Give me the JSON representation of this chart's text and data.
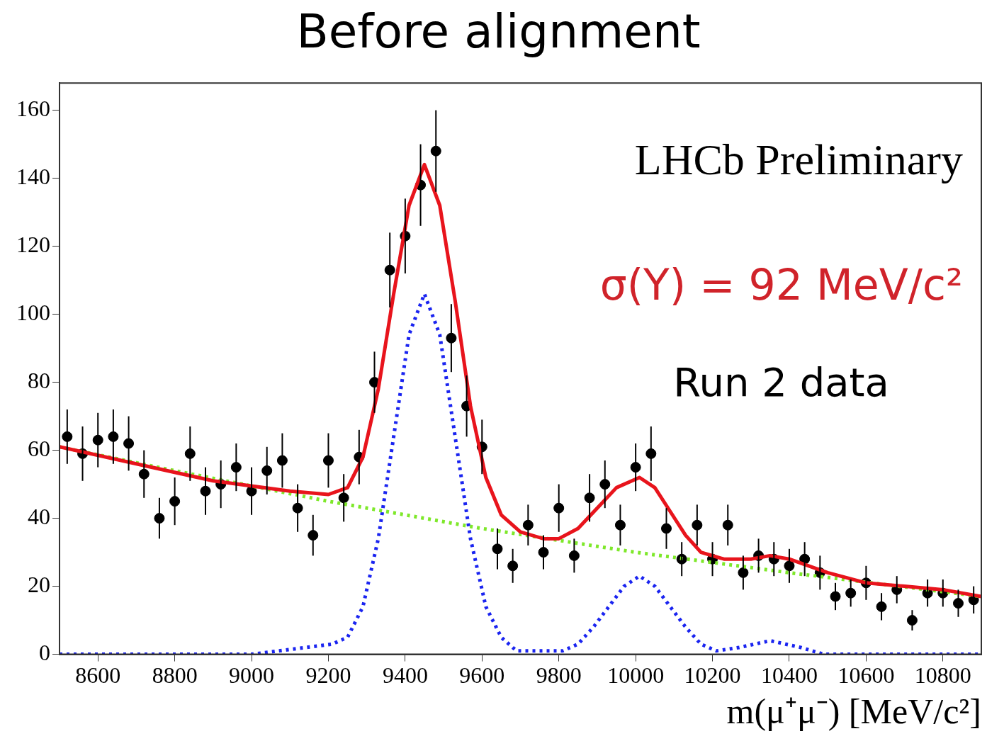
{
  "chart_data": {
    "type": "scatter",
    "title": "Before alignment",
    "xlabel": "m(μ⁺μ⁻) [MeV/c²]",
    "annotations": [
      "LHCb Preliminary",
      "σ(Y) = 92 MeV/c²",
      "Run 2 data"
    ],
    "xlim": [
      8500,
      10900
    ],
    "xticks": [
      8600,
      8800,
      9000,
      9200,
      9400,
      9600,
      9800,
      10000,
      10200,
      10400,
      10600,
      10800
    ],
    "ylim": [
      0,
      168
    ],
    "yticks": [
      0,
      20,
      40,
      60,
      80,
      100,
      120,
      140,
      160
    ],
    "grid": false,
    "legend": false,
    "series": [
      {
        "color": "#000000",
        "marker": "circle",
        "x": [
          8520,
          8560,
          8600,
          8640,
          8680,
          8720,
          8760,
          8800,
          8840,
          8880,
          8920,
          8960,
          9000,
          9040,
          9080,
          9120,
          9160,
          9200,
          9240,
          9280,
          9320,
          9360,
          9400,
          9440,
          9480,
          9520,
          9560,
          9600,
          9640,
          9680,
          9720,
          9760,
          9800,
          9840,
          9880,
          9920,
          9960,
          10000,
          10040,
          10080,
          10120,
          10160,
          10200,
          10240,
          10280,
          10320,
          10360,
          10400,
          10440,
          10480,
          10520,
          10560,
          10600,
          10640,
          10680,
          10720,
          10760,
          10800,
          10840,
          10880
        ],
        "values": [
          64,
          59,
          63,
          64,
          62,
          53,
          40,
          45,
          59,
          48,
          50,
          55,
          48,
          54,
          57,
          43,
          35,
          57,
          46,
          58,
          80,
          113,
          123,
          138,
          148,
          93,
          73,
          61,
          31,
          26,
          38,
          30,
          43,
          29,
          46,
          50,
          38,
          55,
          59,
          37,
          28,
          38,
          28,
          38,
          24,
          29,
          28,
          26,
          28,
          24,
          17,
          18,
          21,
          14,
          19,
          10,
          18,
          18,
          15,
          16
        ],
        "errors": [
          8,
          8,
          8,
          8,
          8,
          7,
          6,
          7,
          8,
          7,
          7,
          7,
          7,
          7,
          8,
          7,
          6,
          8,
          7,
          8,
          9,
          11,
          11,
          12,
          12,
          10,
          9,
          8,
          6,
          5,
          6,
          5,
          7,
          5,
          7,
          7,
          6,
          7,
          8,
          6,
          5,
          6,
          5,
          6,
          5,
          5,
          5,
          5,
          5,
          5,
          4,
          4,
          5,
          4,
          4,
          3,
          4,
          4,
          4,
          4
        ]
      },
      {
        "type": "line",
        "color": "#e8141c",
        "line_style": "solid",
        "marker": "none",
        "x": [
          8500,
          8700,
          8900,
          9100,
          9200,
          9250,
          9290,
          9330,
          9370,
          9410,
          9450,
          9490,
          9530,
          9570,
          9610,
          9650,
          9700,
          9760,
          9800,
          9850,
          9900,
          9950,
          10010,
          10050,
          10090,
          10130,
          10170,
          10230,
          10300,
          10350,
          10400,
          10500,
          10600,
          10700,
          10800,
          10900
        ],
        "values": [
          61,
          56,
          51,
          48,
          47,
          49,
          58,
          78,
          106,
          132,
          144,
          132,
          104,
          73,
          52,
          41,
          36,
          34,
          34,
          37,
          43,
          49,
          52,
          49,
          42,
          35,
          30,
          28,
          28,
          29,
          28,
          24,
          21,
          20,
          19,
          17
        ]
      },
      {
        "type": "line",
        "color": "#7ee82a",
        "line_style": "dotted",
        "marker": "none",
        "x": [
          8500,
          8800,
          9200,
          9600,
          10000,
          10400,
          10900
        ],
        "values": [
          61,
          54,
          45,
          37,
          30,
          24,
          17
        ]
      },
      {
        "type": "line",
        "color": "#1a24f0",
        "line_style": "dotted",
        "marker": "none",
        "x": [
          8500,
          9000,
          9210,
          9250,
          9290,
          9330,
          9370,
          9410,
          9450,
          9490,
          9530,
          9570,
          9610,
          9650,
          9690,
          9810,
          9850,
          9890,
          9930,
          9970,
          10010,
          10050,
          10090,
          10130,
          10170,
          10210,
          10270,
          10310,
          10350,
          10390,
          10430,
          10490,
          10900
        ],
        "values": [
          0,
          0,
          3,
          5,
          14,
          34,
          64,
          94,
          106,
          94,
          64,
          34,
          14,
          5,
          1,
          1,
          3,
          8,
          14,
          20,
          23,
          20,
          14,
          8,
          3,
          1,
          2,
          3,
          4,
          3,
          2,
          0,
          0
        ]
      }
    ]
  }
}
